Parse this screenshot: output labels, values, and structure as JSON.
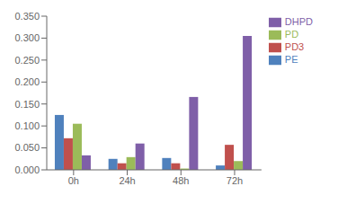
{
  "chart_data": {
    "type": "bar",
    "categories": [
      "0h",
      "24h",
      "48h",
      "72h"
    ],
    "series": [
      {
        "name": "PE",
        "color": "#4F81BD",
        "values": [
          0.125,
          0.025,
          0.027,
          0.01
        ]
      },
      {
        "name": "PD3",
        "color": "#C0504D",
        "values": [
          0.072,
          0.015,
          0.015,
          0.057
        ]
      },
      {
        "name": "PD",
        "color": "#9BBB59",
        "values": [
          0.105,
          0.029,
          0.003,
          0.02
        ]
      },
      {
        "name": "DHPD",
        "color": "#7F5FA8",
        "values": [
          0.033,
          0.06,
          0.166,
          0.305
        ]
      }
    ],
    "ylim": [
      0,
      0.35
    ],
    "yticks": [
      {
        "value": 0,
        "label": "0.000"
      },
      {
        "value": 0.05,
        "label": "0.050"
      },
      {
        "value": 0.1,
        "label": "0.100"
      },
      {
        "value": 0.15,
        "label": "0.150"
      },
      {
        "value": 0.2,
        "label": "0.200"
      },
      {
        "value": 0.25,
        "label": "0.250"
      },
      {
        "value": 0.3,
        "label": "0.300"
      },
      {
        "value": 0.35,
        "label": "0.350"
      }
    ],
    "grid": false,
    "legend": "right"
  }
}
